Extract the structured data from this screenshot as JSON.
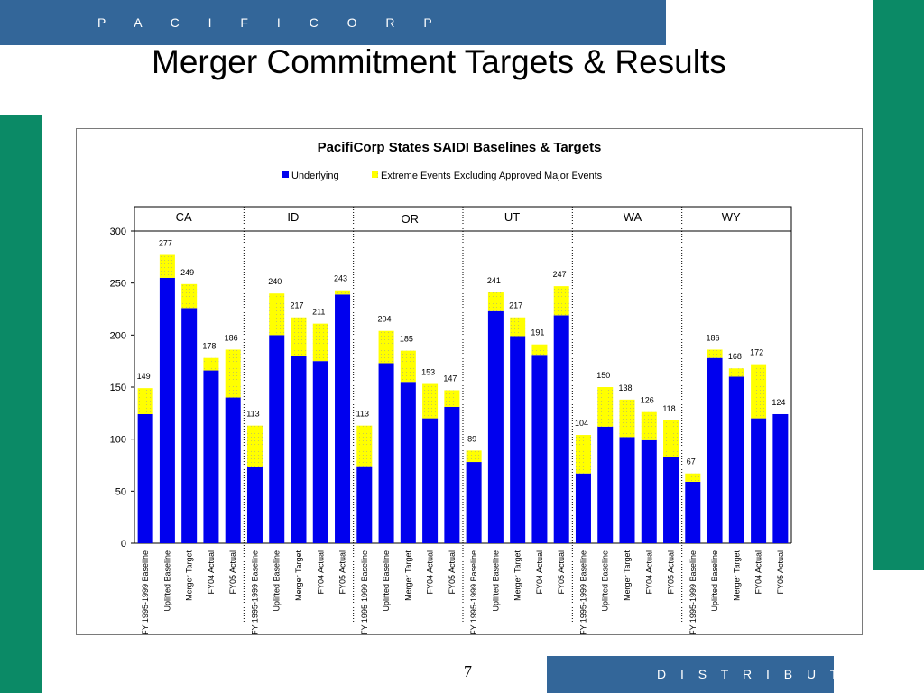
{
  "header": {
    "brand": "P A C I F I C O R P"
  },
  "slide": {
    "title": "Merger Commitment Targets & Results",
    "page_number": "7"
  },
  "footer": {
    "label": "D I S T R I B U T I O N"
  },
  "colors": {
    "underlying": "#0000ee",
    "extreme": "#ffff00",
    "header_bar": "#336699",
    "accent_green": "#0b8a66"
  },
  "chart_data": {
    "type": "bar",
    "stacked": true,
    "title": "PacifiCorp States SAIDI Baselines & Targets",
    "ylim": [
      0,
      300
    ],
    "yticks": [
      0,
      50,
      100,
      150,
      200,
      250,
      300
    ],
    "legend": [
      "Underlying",
      "Extreme Events Excluding Approved Major Events"
    ],
    "legend_position": "top",
    "groups": [
      "CA",
      "ID",
      "OR",
      "UT",
      "WA",
      "WY"
    ],
    "categories": [
      "FY 1995-1999 Baseline",
      "Uplifted Baseline",
      "Merger Target",
      "FY04 Actual",
      "FY05 Actual"
    ],
    "series": [
      {
        "name": "Underlying",
        "values": [
          [
            124,
            255,
            226,
            166,
            140
          ],
          [
            73,
            200,
            180,
            175,
            239
          ],
          [
            74,
            173,
            155,
            120,
            131
          ],
          [
            78,
            223,
            199,
            181,
            219
          ],
          [
            67,
            112,
            102,
            99,
            83
          ],
          [
            59,
            178,
            160,
            120,
            124
          ]
        ]
      },
      {
        "name": "Extreme Events Excluding Approved Major Events",
        "values": [
          [
            25,
            22,
            23,
            12,
            46
          ],
          [
            40,
            40,
            37,
            36,
            4
          ],
          [
            39,
            31,
            30,
            33,
            16
          ],
          [
            11,
            18,
            18,
            10,
            28
          ],
          [
            37,
            38,
            36,
            27,
            35
          ],
          [
            8,
            8,
            8,
            52,
            0
          ]
        ]
      }
    ],
    "totals": [
      [
        149,
        277,
        249,
        178,
        186
      ],
      [
        113,
        240,
        217,
        211,
        243
      ],
      [
        113,
        204,
        185,
        153,
        147
      ],
      [
        89,
        241,
        217,
        191,
        247
      ],
      [
        104,
        150,
        138,
        126,
        118
      ],
      [
        67,
        186,
        168,
        172,
        124
      ]
    ]
  }
}
